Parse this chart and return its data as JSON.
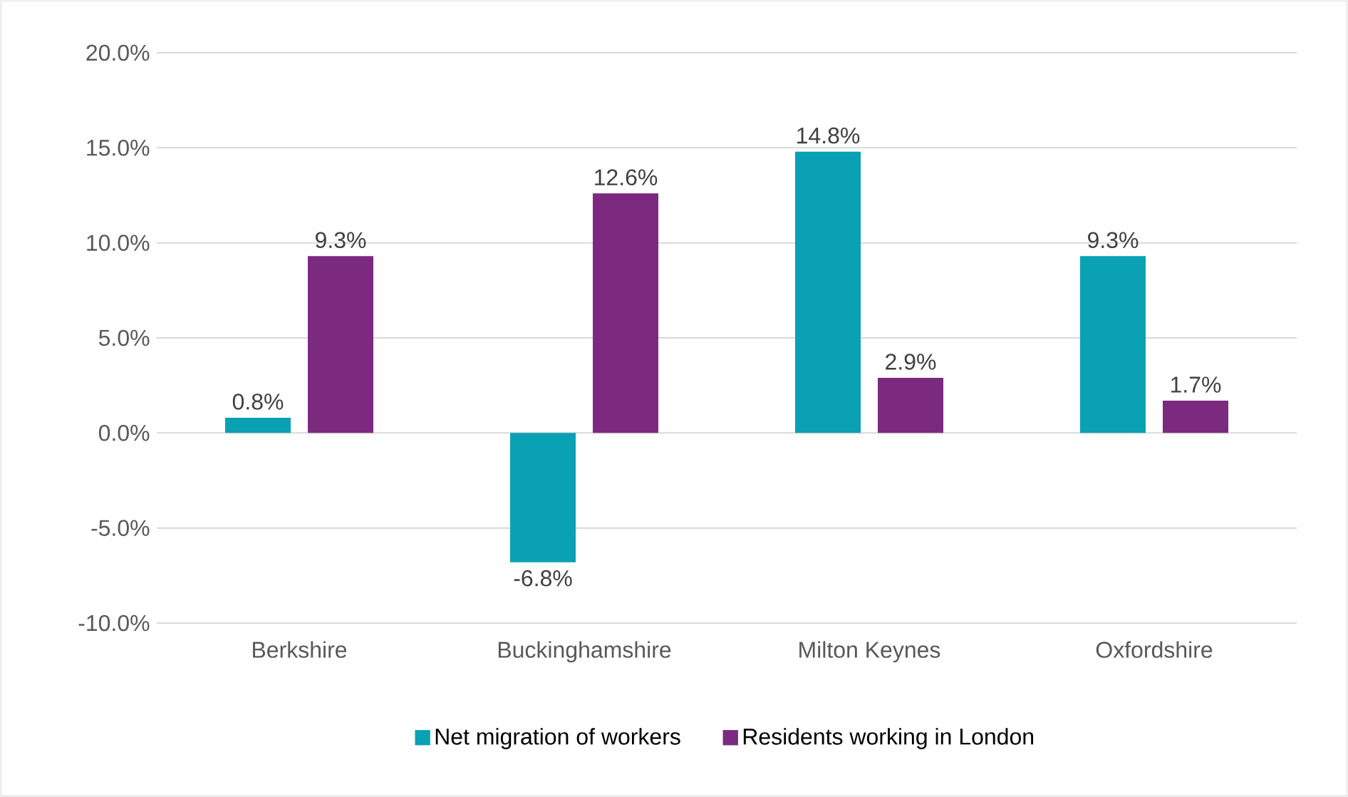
{
  "chart_data": {
    "type": "bar",
    "categories": [
      "Berkshire",
      "Buckinghamshire",
      "Milton Keynes",
      "Oxfordshire"
    ],
    "series": [
      {
        "name": "Net migration of workers",
        "color": "#0aa1b4",
        "values": [
          0.8,
          -6.8,
          14.8,
          9.3
        ],
        "value_labels": [
          "0.8%",
          "-6.8%",
          "14.8%",
          "9.3%"
        ]
      },
      {
        "name": "Residents working in London",
        "color": "#7b2a80",
        "values": [
          9.3,
          12.6,
          2.9,
          1.7
        ],
        "value_labels": [
          "9.3%",
          "12.6%",
          "2.9%",
          "1.7%"
        ]
      }
    ],
    "ylim": [
      -10,
      20
    ],
    "yticks": [
      {
        "value": -10,
        "label": "-10.0%"
      },
      {
        "value": -5,
        "label": "-5.0%"
      },
      {
        "value": 0,
        "label": "0.0%"
      },
      {
        "value": 5,
        "label": "5.0%"
      },
      {
        "value": 10,
        "label": "10.0%"
      },
      {
        "value": 15,
        "label": "15.0%"
      },
      {
        "value": 20,
        "label": "20.0%"
      }
    ],
    "grid": "y",
    "legend": "bottom"
  }
}
